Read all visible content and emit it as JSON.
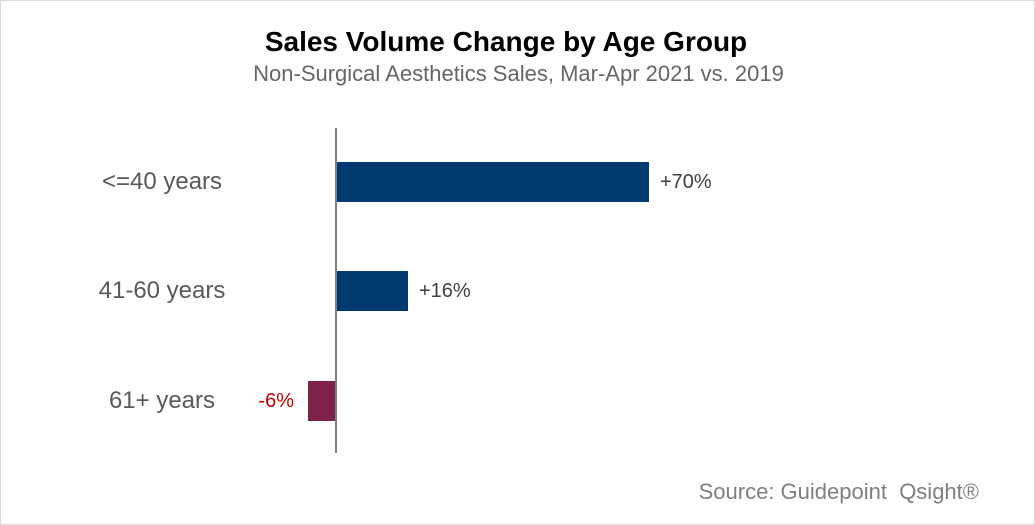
{
  "chart_data": {
    "type": "bar",
    "orientation": "horizontal",
    "title": "Sales Volume Change by Age Group",
    "subtitle": "Non-Surgical Aesthetics Sales, Mar-Apr 2021 vs. 2019",
    "categories": [
      "<=40 years",
      "41-60 years",
      "61+ years"
    ],
    "values": [
      70,
      16,
      -6
    ],
    "data_labels": [
      "+70%",
      "+16%",
      "-6%"
    ],
    "value_unit": "percent",
    "baseline": 0,
    "xlim": [
      -10,
      80
    ],
    "grid": false,
    "legend": false,
    "value_axis_visible": false,
    "source": "Source: Guidepoint  Qsight®",
    "colors": {
      "positive_bar": "#003A70",
      "negative_bar": "#7D2349",
      "positive_label": "#404040",
      "negative_label": "#C00000",
      "axis_line": "#808080",
      "category_label": "#595959",
      "subtitle_text": "#666666",
      "title_text": "#000000",
      "source_text": "#7F7F7F"
    }
  }
}
